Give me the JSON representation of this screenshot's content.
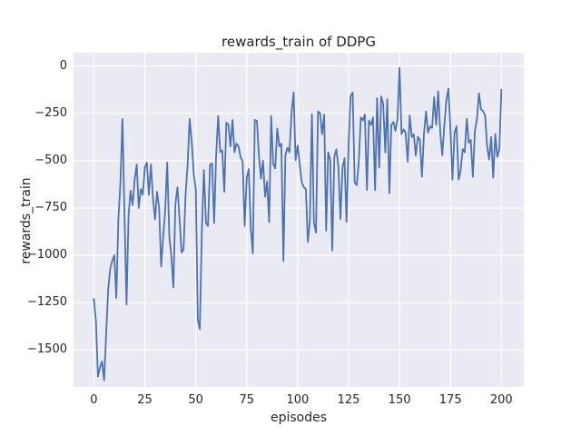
{
  "title": "rewards_train of DDPG",
  "colors": {
    "figure_background": "#ffffff",
    "axes_background": "#eaeaf2",
    "grid": "#ffffff",
    "line": "#4c72b0",
    "text": "#262626"
  },
  "chart_data": {
    "type": "line",
    "title": "rewards_train of DDPG",
    "xlabel": "episodes",
    "ylabel": "rewards_train",
    "legend": "none",
    "grid": true,
    "xlim": [
      -10,
      211
    ],
    "ylim": [
      -1695,
      70
    ],
    "x_ticks": [
      0,
      25,
      50,
      75,
      100,
      125,
      150,
      175,
      200
    ],
    "x_tick_labels": [
      "0",
      "25",
      "50",
      "75",
      "100",
      "125",
      "150",
      "175",
      "200"
    ],
    "y_ticks": [
      0,
      -250,
      -500,
      -750,
      -1000,
      -1250,
      -1500
    ],
    "y_tick_labels": [
      "0",
      "−250",
      "−500",
      "−750",
      "−1000",
      "−1250",
      "−1500"
    ],
    "series": [
      {
        "name": "rewards_train",
        "x_start": 0,
        "x_step": 1,
        "y": [
          -1230,
          -1350,
          -1640,
          -1590,
          -1560,
          -1660,
          -1420,
          -1180,
          -1070,
          -1030,
          -1000,
          -1225,
          -810,
          -620,
          -280,
          -780,
          -1260,
          -790,
          -660,
          -735,
          -600,
          -520,
          -750,
          -650,
          -680,
          -535,
          -510,
          -680,
          -520,
          -700,
          -810,
          -665,
          -750,
          -1060,
          -900,
          -760,
          -510,
          -900,
          -1000,
          -1170,
          -730,
          -640,
          -800,
          -985,
          -970,
          -680,
          -520,
          -280,
          -400,
          -570,
          -650,
          -1340,
          -1390,
          -860,
          -550,
          -830,
          -845,
          -520,
          -515,
          -830,
          -470,
          -265,
          -455,
          -445,
          -665,
          -300,
          -310,
          -425,
          -285,
          -455,
          -410,
          -425,
          -480,
          -505,
          -845,
          -590,
          -545,
          -860,
          -990,
          -285,
          -290,
          -472,
          -595,
          -500,
          -690,
          -610,
          -825,
          -265,
          -515,
          -540,
          -330,
          -425,
          -410,
          -1030,
          -470,
          -432,
          -456,
          -250,
          -140,
          -497,
          -420,
          -516,
          -615,
          -640,
          -650,
          -930,
          -820,
          -255,
          -825,
          -880,
          -240,
          -250,
          -360,
          -256,
          -870,
          -456,
          -497,
          -975,
          -480,
          -440,
          -537,
          -808,
          -537,
          -488,
          -824,
          -416,
          -160,
          -140,
          -615,
          -630,
          -505,
          -272,
          -288,
          -256,
          -656,
          -288,
          -312,
          -272,
          -656,
          -170,
          -537,
          -160,
          -200,
          -456,
          -175,
          -672,
          -312,
          -296,
          -343,
          -280,
          -10,
          -360,
          -335,
          -352,
          -506,
          -262,
          -375,
          -360,
          -474,
          -375,
          -390,
          -585,
          -360,
          -240,
          -352,
          -319,
          -327,
          -166,
          -311,
          -134,
          -352,
          -472,
          -311,
          -180,
          -120,
          -335,
          -600,
          -352,
          -319,
          -600,
          -552,
          -439,
          -456,
          -279,
          -406,
          -390,
          -585,
          -343,
          -279,
          -145,
          -230,
          -238,
          -262,
          -423,
          -495,
          -375,
          -590,
          -360,
          -480,
          -440,
          -125
        ]
      }
    ]
  }
}
